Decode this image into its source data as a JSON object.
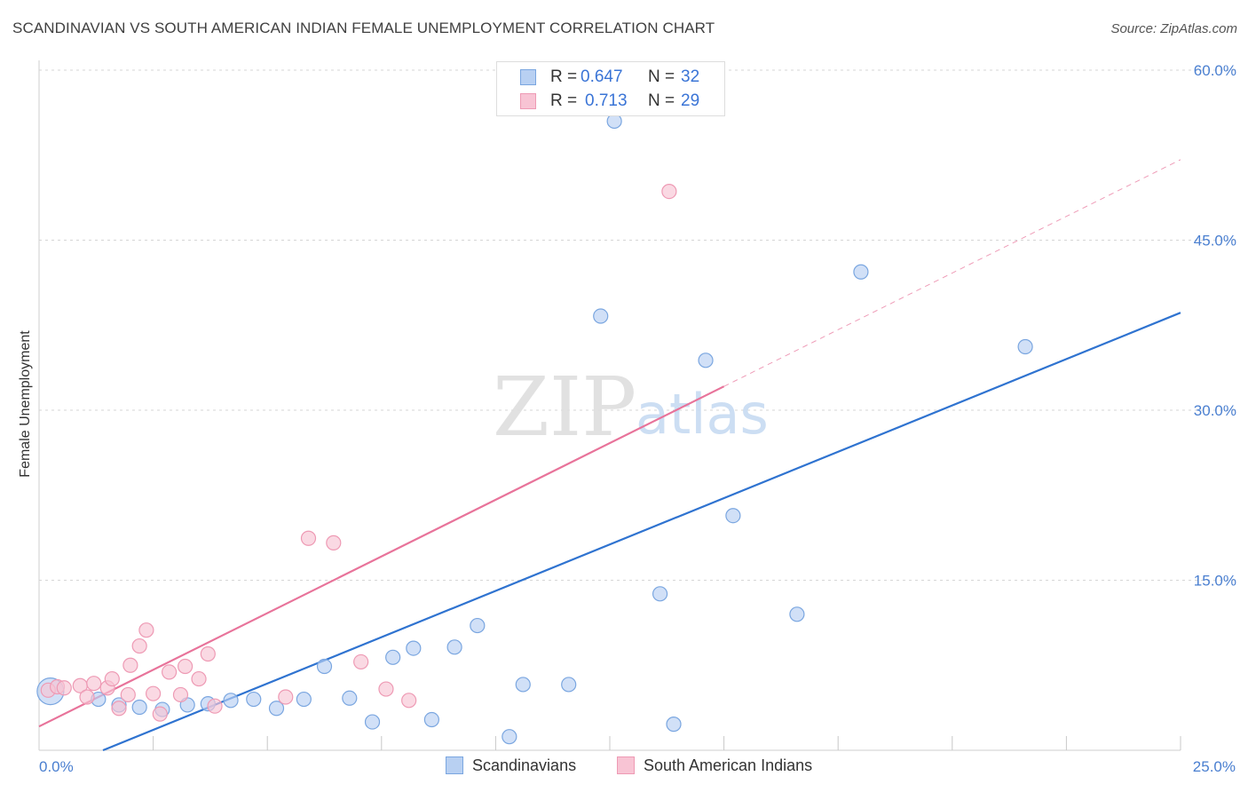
{
  "title": "SCANDINAVIAN VS SOUTH AMERICAN INDIAN FEMALE UNEMPLOYMENT CORRELATION CHART",
  "source": "Source: ZipAtlas.com",
  "watermark": {
    "zip": "ZIP",
    "atlas": "atlas"
  },
  "legend": {
    "rows": [
      {
        "r_label": "R =",
        "r_value": "0.647",
        "n_label": "N =",
        "n_value": "32"
      },
      {
        "r_label": "R =",
        "r_value": "0.713",
        "n_label": "N =",
        "n_value": "29"
      }
    ]
  },
  "bottom_legend": {
    "series1": "Scandinavians",
    "series2": "South American Indians"
  },
  "colors": {
    "blue_fill": "#b8d0f2",
    "blue_stroke": "#7aa6e0",
    "blue_line": "#2f73d0",
    "pink_fill": "#f8c4d4",
    "pink_stroke": "#ee9ab4",
    "pink_line": "#e8739a",
    "tick_text": "#4a7fd0",
    "grid": "#d6d6d6"
  },
  "chart_data": {
    "type": "scatter",
    "title": "SCANDINAVIAN VS SOUTH AMERICAN INDIAN FEMALE UNEMPLOYMENT CORRELATION CHART",
    "xlabel": "",
    "ylabel": "Female Unemployment",
    "xlim": [
      0,
      25
    ],
    "ylim": [
      0,
      60
    ],
    "y_ticks": [
      15,
      30,
      45,
      60
    ],
    "y_tick_labels": [
      "15.0%",
      "30.0%",
      "45.0%",
      "60.0%"
    ],
    "x_tick_labels": [
      "0.0%",
      "25.0%"
    ],
    "series": [
      {
        "name": "Scandinavians",
        "r": 0.647,
        "n": 32,
        "trend": {
          "x": [
            1.4,
            25
          ],
          "y": [
            0,
            38.6
          ]
        },
        "points": [
          {
            "x": 0.25,
            "y": 5.2,
            "big": true
          },
          {
            "x": 1.3,
            "y": 4.5
          },
          {
            "x": 1.75,
            "y": 4.0
          },
          {
            "x": 2.2,
            "y": 3.8
          },
          {
            "x": 2.7,
            "y": 3.6
          },
          {
            "x": 3.25,
            "y": 4.0
          },
          {
            "x": 3.7,
            "y": 4.1
          },
          {
            "x": 4.2,
            "y": 4.4
          },
          {
            "x": 4.7,
            "y": 4.5
          },
          {
            "x": 5.2,
            "y": 3.7
          },
          {
            "x": 5.8,
            "y": 4.5
          },
          {
            "x": 6.25,
            "y": 7.4
          },
          {
            "x": 6.8,
            "y": 4.6
          },
          {
            "x": 7.3,
            "y": 2.5
          },
          {
            "x": 7.75,
            "y": 8.2
          },
          {
            "x": 8.2,
            "y": 9.0
          },
          {
            "x": 8.6,
            "y": 2.7
          },
          {
            "x": 9.1,
            "y": 9.1
          },
          {
            "x": 9.6,
            "y": 11.0
          },
          {
            "x": 10.3,
            "y": 1.2
          },
          {
            "x": 10.6,
            "y": 5.8
          },
          {
            "x": 11.6,
            "y": 5.8
          },
          {
            "x": 12.3,
            "y": 38.3
          },
          {
            "x": 12.6,
            "y": 55.5
          },
          {
            "x": 13.6,
            "y": 13.8
          },
          {
            "x": 13.9,
            "y": 2.3
          },
          {
            "x": 14.6,
            "y": 34.4
          },
          {
            "x": 15.2,
            "y": 20.7
          },
          {
            "x": 16.6,
            "y": 12.0
          },
          {
            "x": 18.0,
            "y": 42.2
          },
          {
            "x": 21.6,
            "y": 35.6
          }
        ]
      },
      {
        "name": "South American Indians",
        "r": 0.713,
        "n": 29,
        "trend": {
          "x": [
            0,
            15
          ],
          "y": [
            2.1,
            32.1
          ]
        },
        "trend_extension": {
          "x": [
            15,
            25
          ],
          "y": [
            32.1,
            52.1
          ]
        },
        "points": [
          {
            "x": 0.2,
            "y": 5.3
          },
          {
            "x": 0.4,
            "y": 5.6
          },
          {
            "x": 0.55,
            "y": 5.5
          },
          {
            "x": 0.9,
            "y": 5.7
          },
          {
            "x": 1.05,
            "y": 4.7
          },
          {
            "x": 1.2,
            "y": 5.9
          },
          {
            "x": 1.5,
            "y": 5.5
          },
          {
            "x": 1.6,
            "y": 6.3
          },
          {
            "x": 1.75,
            "y": 3.7
          },
          {
            "x": 1.95,
            "y": 4.9
          },
          {
            "x": 2.0,
            "y": 7.5
          },
          {
            "x": 2.2,
            "y": 9.2
          },
          {
            "x": 2.35,
            "y": 10.6
          },
          {
            "x": 2.5,
            "y": 5.0
          },
          {
            "x": 2.65,
            "y": 3.2
          },
          {
            "x": 2.85,
            "y": 6.9
          },
          {
            "x": 3.1,
            "y": 4.9
          },
          {
            "x": 3.2,
            "y": 7.4
          },
          {
            "x": 3.5,
            "y": 6.3
          },
          {
            "x": 3.7,
            "y": 8.5
          },
          {
            "x": 3.85,
            "y": 3.9
          },
          {
            "x": 5.4,
            "y": 4.7
          },
          {
            "x": 5.9,
            "y": 18.7
          },
          {
            "x": 6.45,
            "y": 18.3
          },
          {
            "x": 7.05,
            "y": 7.8
          },
          {
            "x": 7.6,
            "y": 5.4
          },
          {
            "x": 8.1,
            "y": 4.4
          },
          {
            "x": 13.8,
            "y": 49.3
          }
        ]
      }
    ]
  }
}
